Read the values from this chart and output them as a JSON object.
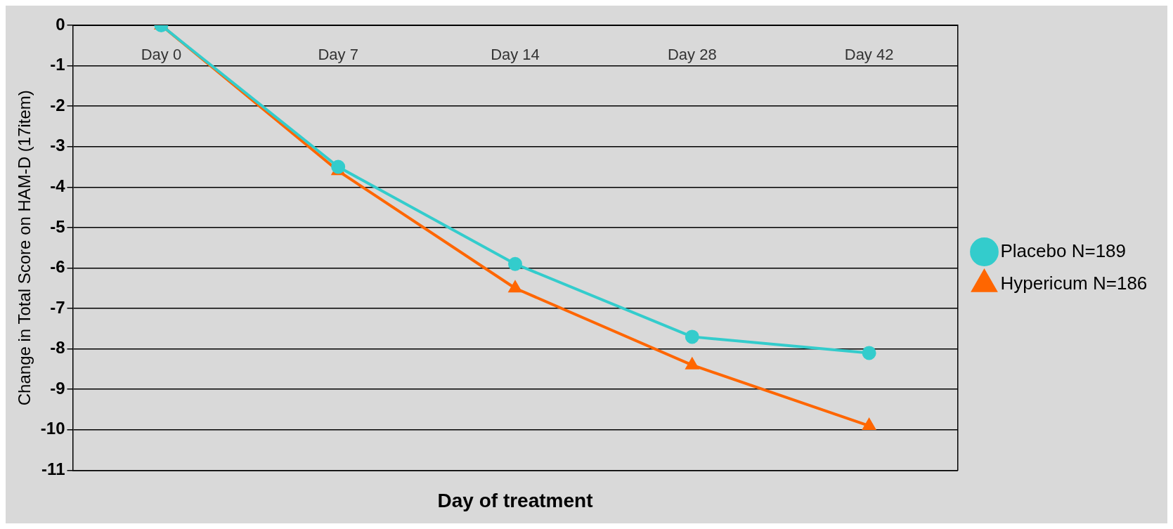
{
  "chart_data": {
    "type": "line",
    "xlabel": "Day of treatment",
    "ylabel": "Change in Total Score on HAM-D (17item)",
    "categories": [
      "Day 0",
      "Day 7",
      "Day 14",
      "Day 28",
      "Day 42"
    ],
    "series": [
      {
        "name": "Hypericum N=186",
        "color": "#ff6600",
        "marker": "triangle",
        "values": [
          0,
          -3.6,
          -6.5,
          -8.4,
          -9.9
        ]
      },
      {
        "name": "Placebo N=189",
        "color": "#33cccc",
        "marker": "circle",
        "values": [
          0,
          -3.5,
          -5.9,
          -7.7,
          -8.1
        ]
      }
    ],
    "ylim": [
      -11,
      0
    ],
    "yticks": [
      0,
      -1,
      -2,
      -3,
      -4,
      -5,
      -6,
      -7,
      -8,
      -9,
      -10,
      -11
    ],
    "grid": "y",
    "legend": "right",
    "line_style": "solid"
  }
}
